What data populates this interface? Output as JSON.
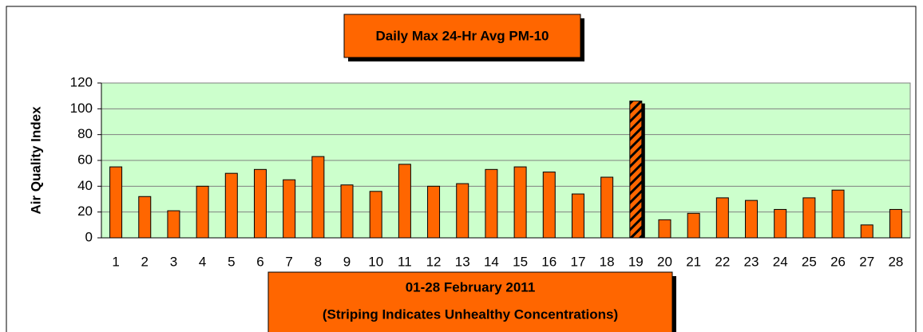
{
  "chart_data": {
    "type": "bar",
    "title": "Daily Max 24-Hr Avg PM-10",
    "ylabel": "Air Quality Index",
    "xlabel": [
      "01-28 February 2011",
      "(Striping Indicates Unhealthy Concentrations)"
    ],
    "categories": [
      "1",
      "2",
      "3",
      "4",
      "5",
      "6",
      "7",
      "8",
      "9",
      "10",
      "11",
      "12",
      "13",
      "14",
      "15",
      "16",
      "17",
      "18",
      "19",
      "20",
      "21",
      "22",
      "23",
      "24",
      "25",
      "26",
      "27",
      "28"
    ],
    "values": [
      55,
      32,
      21,
      40,
      50,
      53,
      45,
      63,
      41,
      36,
      57,
      40,
      42,
      53,
      55,
      51,
      34,
      47,
      106,
      14,
      19,
      31,
      29,
      22,
      31,
      37,
      10,
      22
    ],
    "striped_categories": [
      "19"
    ],
    "color": "#ff6600",
    "plot_background": "#ccffcc",
    "ylim": [
      0,
      120
    ],
    "yticks": [
      0,
      20,
      40,
      60,
      80,
      100,
      120
    ],
    "grid": true
  }
}
